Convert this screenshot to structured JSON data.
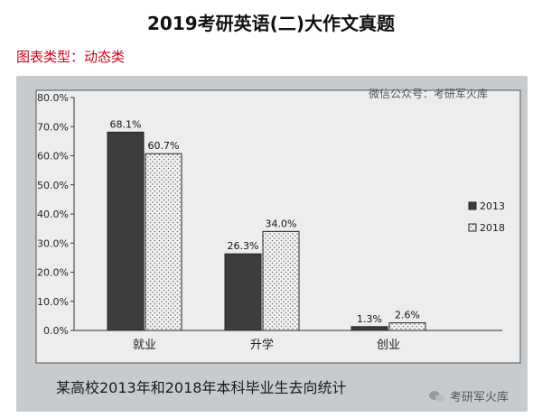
{
  "header": {
    "title": "2019考研英语(二)大作文真题",
    "subtitle": "图表类型：动态类"
  },
  "watermark": "微信公众号：考研军火库",
  "caption": "某高校2013年和2018年本科毕业生去向统计",
  "brand": {
    "label": "考研军火库",
    "icon": "wechat-logo-icon"
  },
  "chart_data": {
    "type": "bar",
    "categories": [
      "就业",
      "升学",
      "创业"
    ],
    "series": [
      {
        "name": "2013",
        "values": [
          68.1,
          26.3,
          1.3
        ],
        "labels": [
          "68.1%",
          "26.3%",
          "1.3%"
        ],
        "color": "#3d3d3d",
        "pattern": "solid"
      },
      {
        "name": "2018",
        "values": [
          60.7,
          34.0,
          2.6
        ],
        "labels": [
          "60.7%",
          "34.0%",
          "2.6%"
        ],
        "color": "#ffffff",
        "pattern": "dotted"
      }
    ],
    "ylim": [
      0,
      80
    ],
    "yticks": [
      "0.0%",
      "10.0%",
      "20.0%",
      "30.0%",
      "40.0%",
      "50.0%",
      "60.0%",
      "70.0%",
      "80.0%"
    ],
    "title": "",
    "xlabel": "",
    "ylabel": "",
    "legend": "right",
    "grid": false
  }
}
